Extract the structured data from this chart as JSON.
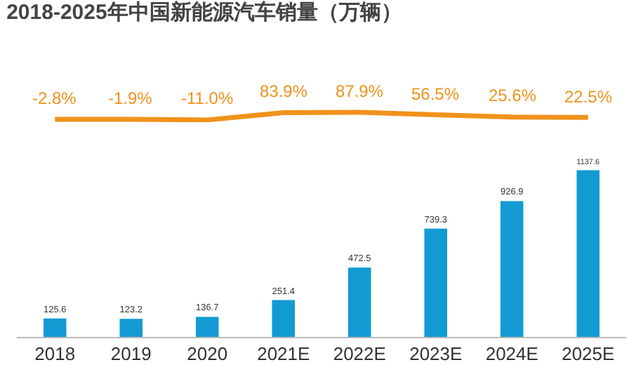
{
  "chart_data": [
    {
      "type": "line",
      "title": "2018-2025年中国新能源汽车销量（万辆）",
      "categories": [
        null,
        null,
        null,
        null,
        null,
        null,
        null,
        null
      ],
      "series": [
        {
          "color": "#f0921c",
          "values": [
            -2.8,
            -1.9,
            -11.0,
            83.9,
            87.9,
            56.5,
            25.6,
            22.5
          ],
          "value_labels": [
            "-2.8%",
            "-1.9%",
            "-11.0%",
            "83.9%",
            "87.9%",
            "56.5%",
            "25.6%",
            "22.5%"
          ]
        }
      ],
      "data_labels": true,
      "tick_labels": false,
      "line_style": "solid"
    },
    {
      "type": "bar",
      "categories": [
        "2018",
        "2019",
        "2020",
        "2021E",
        "2022E",
        "2023E",
        "2024E",
        "2025E"
      ],
      "series": [
        {
          "color": "#129bd3",
          "values": [
            125.6,
            123.2,
            136.7,
            251.4,
            472.5,
            739.3,
            926.9,
            1137.6
          ]
        }
      ],
      "data_labels": true,
      "tick_labels": "x"
    }
  ]
}
